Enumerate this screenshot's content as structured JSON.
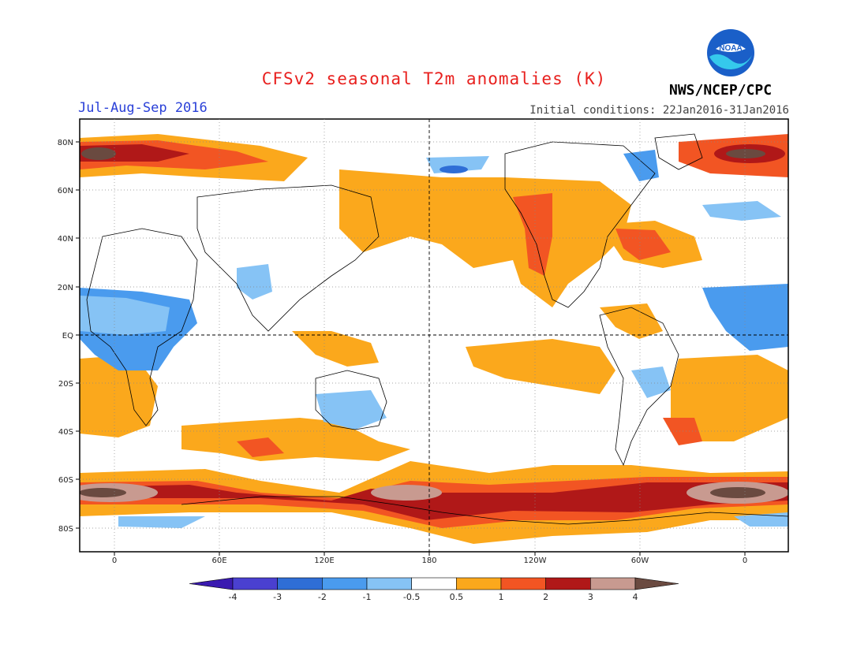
{
  "title": "CFSv2 seasonal T2m anomalies (K)",
  "season": "Jul-Aug-Sep 2016",
  "initial_conditions": "Initial conditions: 22Jan2016-31Jan2016",
  "agency": "NWS/NCEP/CPC",
  "logo_text": "NOAA",
  "map": {
    "lat_labels": [
      "80N",
      "60N",
      "40N",
      "20N",
      "EQ",
      "20S",
      "40S",
      "60S",
      "80S"
    ],
    "lon_labels": [
      "0",
      "60E",
      "120E",
      "180",
      "120W",
      "60W",
      "0"
    ]
  },
  "colorbar": {
    "labels": [
      "-4",
      "-3",
      "-2",
      "-1",
      "-0.5",
      "0.5",
      "1",
      "2",
      "3",
      "4"
    ],
    "colors": [
      "#3a1ab0",
      "#4a40d0",
      "#2f6ed6",
      "#4a9bee",
      "#86c3f5",
      "#ffffff",
      "#fba81c",
      "#f25523",
      "#b01818",
      "#c89a90",
      "#6a4a40"
    ]
  }
}
